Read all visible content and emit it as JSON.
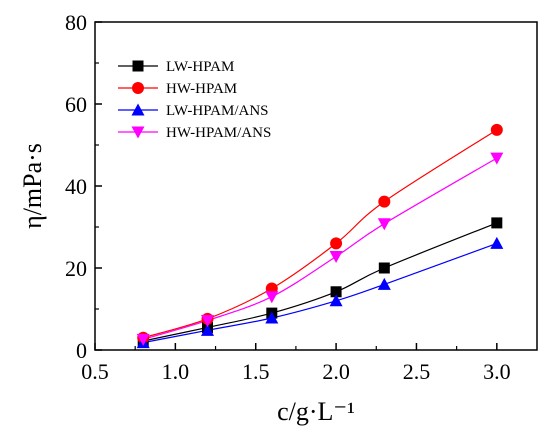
{
  "chart_data": {
    "type": "line",
    "xlabel": "c/g·L⁻¹",
    "ylabel": "η/mPa·s",
    "xlim": [
      0.5,
      3.25
    ],
    "ylim": [
      0,
      80
    ],
    "xticks": [
      0.5,
      1.0,
      1.5,
      2.0,
      2.5,
      3.0
    ],
    "xtick_labels": [
      "0.5",
      "1.0",
      "1.5",
      "2.0",
      "2.5",
      "3.0"
    ],
    "yticks": [
      0,
      20,
      40,
      60,
      80
    ],
    "ytick_labels": [
      "0",
      "20",
      "40",
      "60",
      "80"
    ],
    "grid": false,
    "legend_position": "top-left",
    "x": [
      0.8,
      1.2,
      1.6,
      2.0,
      2.3,
      3.0
    ],
    "series": [
      {
        "name": "LW-HPAM",
        "color": "#000000",
        "marker": "square",
        "values": [
          2.2,
          5.5,
          9.0,
          14.2,
          20.0,
          31.0
        ]
      },
      {
        "name": "HW-HPAM",
        "color": "#ff0000",
        "marker": "circle",
        "values": [
          3.0,
          7.6,
          15.0,
          26.0,
          36.2,
          53.7
        ]
      },
      {
        "name": "LW-HPAM/ANS",
        "color": "#0000ff",
        "marker": "triangle-up",
        "values": [
          1.8,
          4.8,
          7.8,
          12.0,
          16.0,
          26.0
        ]
      },
      {
        "name": "HW-HPAM/ANS",
        "color": "#ff00ff",
        "marker": "triangle-down",
        "values": [
          2.6,
          7.2,
          13.0,
          22.8,
          30.8,
          46.8
        ]
      }
    ]
  }
}
